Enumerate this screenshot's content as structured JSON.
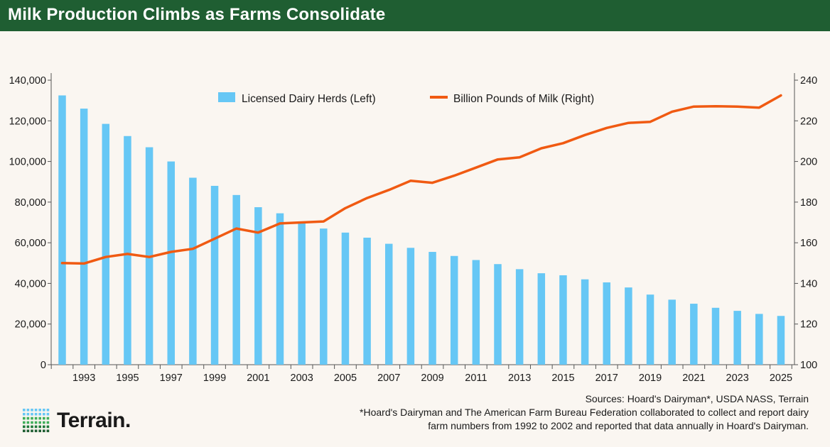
{
  "header": {
    "title": "Milk Production Climbs as Farms Consolidate"
  },
  "sources": {
    "line1": "Sources: Hoard's Dairyman*, USDA NASS, Terrain",
    "line2": "*Hoard's Dairyman and The American Farm Bureau Federation collaborated to collect and report dairy",
    "line3": "farm numbers from 1992 to 2002 and reported that data annually in Hoard's Dairyman."
  },
  "logo": {
    "text": "Terrain."
  },
  "colors": {
    "header_bg": "#1f5e32",
    "bars": "#66c7f5",
    "line": "#f05a12",
    "background": "#faf6f1"
  },
  "chart_data": {
    "type": "bar",
    "years": [
      1992,
      1993,
      1994,
      1995,
      1996,
      1997,
      1998,
      1999,
      2000,
      2001,
      2002,
      2003,
      2004,
      2005,
      2006,
      2007,
      2008,
      2009,
      2010,
      2011,
      2012,
      2013,
      2014,
      2015,
      2016,
      2017,
      2018,
      2019,
      2020,
      2021,
      2022,
      2023,
      2024,
      2025
    ],
    "x_tick_labels": [
      "1993",
      "1995",
      "1997",
      "1999",
      "2001",
      "2003",
      "2005",
      "2007",
      "2009",
      "2011",
      "2013",
      "2015",
      "2017",
      "2019",
      "2021",
      "2023",
      "2025"
    ],
    "series": [
      {
        "name": "Licensed Dairy Herds (Left)",
        "type": "bar",
        "axis": "left",
        "values": [
          132500,
          126000,
          118500,
          112500,
          107000,
          100000,
          92000,
          88000,
          83500,
          77500,
          74500,
          70500,
          67000,
          65000,
          62500,
          59500,
          57500,
          55500,
          53500,
          51500,
          49500,
          47000,
          45000,
          44000,
          42000,
          40500,
          38000,
          34500,
          32000,
          30000,
          28000,
          26500,
          25000,
          24000
        ]
      },
      {
        "name": "Billion Pounds of Milk (Right)",
        "type": "line",
        "axis": "right",
        "values": [
          150,
          149.8,
          153,
          154.5,
          153,
          155.5,
          157,
          162,
          167,
          165,
          169.5,
          170,
          170.5,
          177,
          182,
          186,
          190.5,
          189.5,
          193,
          197,
          201,
          202,
          206.5,
          209,
          213,
          216.5,
          219,
          219.5,
          224.5,
          227,
          227.2,
          227,
          226.5,
          232.5
        ]
      }
    ],
    "y_left": {
      "min": 0,
      "max": 140000,
      "ticks": [
        "0",
        "20,000",
        "40,000",
        "60,000",
        "80,000",
        "100,000",
        "120,000",
        "140,000"
      ]
    },
    "y_right": {
      "min": 100,
      "max": 240,
      "ticks": [
        "100",
        "120",
        "140",
        "160",
        "180",
        "200",
        "220",
        "240"
      ]
    },
    "title": "",
    "grid": false,
    "legend_position": "top-center"
  }
}
